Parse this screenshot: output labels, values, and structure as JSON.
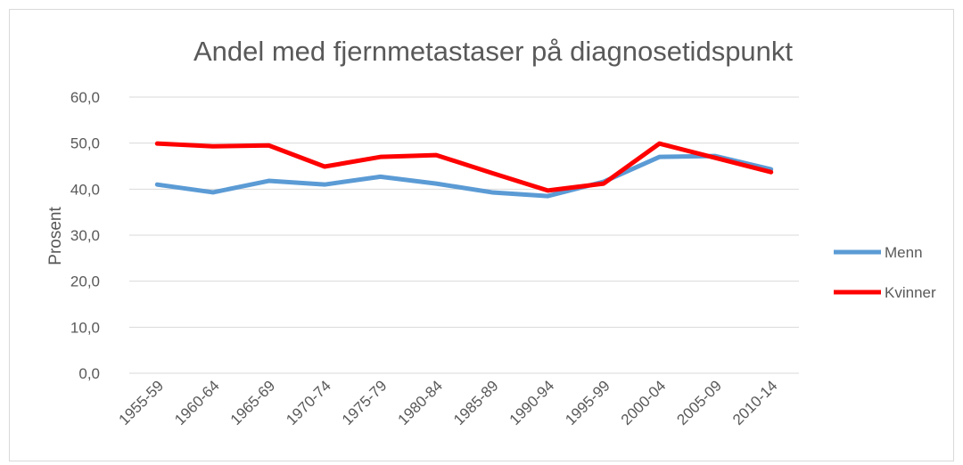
{
  "chart_data": {
    "type": "line",
    "title": "Andel med fjernmetastaser på diagnosetidspunkt",
    "y_label": "Prosent",
    "categories": [
      "1955-59",
      "1960-64",
      "1965-69",
      "1970-74",
      "1975-79",
      "1980-84",
      "1985-89",
      "1990-94",
      "1995-99",
      "2000-04",
      "2005-09",
      "2010-14"
    ],
    "series": [
      {
        "name": "Menn",
        "color": "#5b9bd5",
        "values": [
          41.0,
          39.3,
          41.8,
          41.0,
          42.7,
          41.2,
          39.3,
          38.5,
          41.6,
          47.0,
          47.2,
          44.3
        ]
      },
      {
        "name": "Kvinner",
        "color": "#ff0000",
        "values": [
          49.9,
          49.3,
          49.5,
          44.9,
          47.0,
          47.4,
          43.5,
          39.7,
          41.2,
          49.9,
          46.8,
          43.7
        ]
      }
    ],
    "ylim": [
      0,
      60
    ],
    "yticks": [
      {
        "value": 0,
        "label": "0,0"
      },
      {
        "value": 10,
        "label": "10,0"
      },
      {
        "value": 20,
        "label": "20,0"
      },
      {
        "value": 30,
        "label": "30,0"
      },
      {
        "value": 40,
        "label": "40,0"
      },
      {
        "value": 50,
        "label": "50,0"
      },
      {
        "value": 60,
        "label": "60,0"
      }
    ],
    "grid": true,
    "legend": "right"
  }
}
